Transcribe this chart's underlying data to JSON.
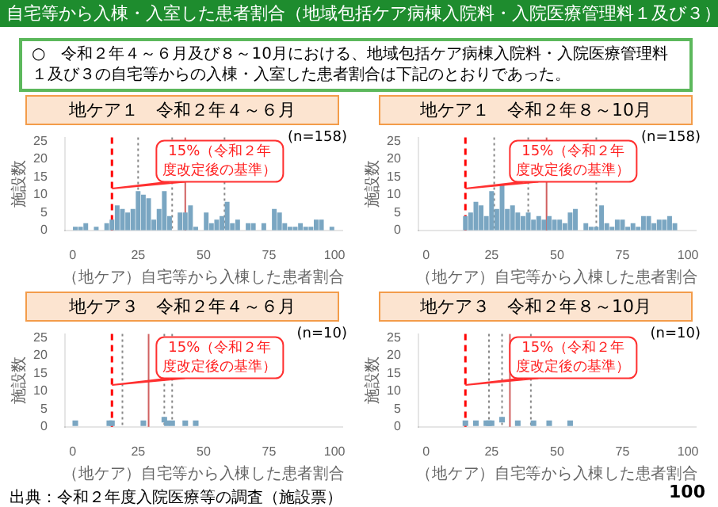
{
  "chart_data": [
    {
      "type": "histogram",
      "title": "地ケア１　令和２年４～６月",
      "xlabel": "（地ケア）自宅等から入棟した患者割合",
      "ylabel": "施設数",
      "color": "#7aa6c2",
      "bins": [
        0,
        2,
        4,
        6,
        8,
        10,
        12,
        14,
        16,
        18,
        20,
        22,
        24,
        26,
        28,
        30,
        32,
        34,
        36,
        38,
        40,
        42,
        44,
        46,
        48,
        50,
        52,
        54,
        56,
        58,
        60,
        62,
        64,
        66,
        68,
        70,
        72,
        74,
        76,
        78,
        80,
        82,
        84,
        86,
        88,
        90,
        92,
        94,
        96,
        98,
        100
      ],
      "values": [
        1,
        1,
        2,
        0,
        1,
        0,
        2,
        3,
        7,
        6,
        5,
        6,
        11,
        10,
        9,
        3,
        6,
        11,
        4,
        0,
        5,
        5,
        7,
        1,
        0,
        5,
        2,
        3,
        4,
        8,
        2,
        3,
        0,
        2,
        2,
        0,
        2,
        0,
        6,
        5,
        2,
        1,
        1,
        2,
        1,
        1,
        3,
        3,
        0,
        1
      ],
      "xlim": [
        -3,
        103
      ],
      "xticks": [
        0,
        25,
        50,
        75,
        100
      ],
      "ylim": [
        0,
        26
      ],
      "yticks": [
        0,
        5,
        10,
        15,
        20,
        25
      ],
      "ref_lines": [
        {
          "axis": "x",
          "value": 15,
          "color": "#ff0000",
          "line_style": "dashed"
        },
        {
          "axis": "x",
          "value": 25,
          "color": "#888888",
          "line_style": "dotted"
        },
        {
          "axis": "x",
          "value": 38,
          "color": "#888888",
          "line_style": "dotted"
        },
        {
          "axis": "x",
          "value": 43,
          "color": "#d06060",
          "line_style": "solid"
        },
        {
          "axis": "x",
          "value": 58,
          "color": "#888888",
          "line_style": "dotted"
        }
      ],
      "annotations": [
        "(n=158)",
        "15%（令和２年度改定後の基準）",
        "自宅等から入棟・入室した患者割合（地域包括ケア病棟入院料・入院医療管理料１及び３）",
        "○　令和２年４～６月及び８～10月における、地域包括ケア病棟入院料・入院医療管理料１及び３の自宅等からの入棟・入室した患者割合は下記のとおりであった。"
      ]
    },
    {
      "type": "histogram",
      "title": "地ケア１　令和２年８～10月",
      "xlabel": "（地ケア）自宅等から入棟した患者割合",
      "ylabel": "施設数",
      "color": "#7aa6c2",
      "bins": [
        14,
        16,
        18,
        20,
        22,
        24,
        26,
        28,
        30,
        32,
        34,
        36,
        38,
        40,
        42,
        44,
        46,
        48,
        50,
        52,
        54,
        56,
        58,
        60,
        62,
        64,
        66,
        68,
        70,
        72,
        74,
        76,
        78,
        80,
        82,
        84,
        86,
        88,
        90,
        92,
        94,
        96
      ],
      "values": [
        4,
        5,
        8,
        7,
        4,
        11,
        6,
        13,
        6,
        7,
        5,
        4,
        5,
        3,
        4,
        3,
        4,
        3,
        3,
        2,
        5,
        6,
        0,
        2,
        1,
        1,
        7,
        2,
        1,
        3,
        3,
        1,
        2,
        1,
        4,
        4,
        2,
        3,
        3,
        4,
        2
      ],
      "xlim": [
        -3,
        103
      ],
      "xticks": [
        0,
        25,
        50,
        75,
        100
      ],
      "ylim": [
        0,
        26
      ],
      "yticks": [
        0,
        5,
        10,
        15,
        20,
        25
      ],
      "ref_lines": [
        {
          "axis": "x",
          "value": 15,
          "color": "#ff0000",
          "line_style": "dashed"
        },
        {
          "axis": "x",
          "value": 26,
          "color": "#888888",
          "line_style": "dotted"
        },
        {
          "axis": "x",
          "value": 39,
          "color": "#888888",
          "line_style": "dotted"
        },
        {
          "axis": "x",
          "value": 46,
          "color": "#d06060",
          "line_style": "solid"
        },
        {
          "axis": "x",
          "value": 65,
          "color": "#888888",
          "line_style": "dotted"
        }
      ],
      "annotations": [
        "(n=158)",
        "15%（令和２年度改定後の基準）"
      ]
    },
    {
      "type": "scatter",
      "title": "地ケア３　令和２年４～６月",
      "xlabel": "（地ケア）自宅等から入棟した患者割合",
      "ylabel": "施設数",
      "color": "#7aa6c2",
      "marker": "square",
      "x": [
        1,
        14,
        15,
        27,
        35,
        36,
        38,
        43,
        47
      ],
      "values": [
        1,
        1,
        1,
        1,
        2,
        1,
        1,
        1,
        1
      ],
      "xlim": [
        -3,
        103
      ],
      "xticks": [
        0,
        25,
        50,
        75,
        100
      ],
      "ylim": [
        0,
        26
      ],
      "yticks": [
        0,
        5,
        10,
        15,
        20,
        25
      ],
      "ref_lines": [
        {
          "axis": "x",
          "value": 15,
          "color": "#ff0000",
          "line_style": "dashed"
        },
        {
          "axis": "x",
          "value": 19,
          "color": "#888888",
          "line_style": "dotted"
        },
        {
          "axis": "x",
          "value": 29,
          "color": "#d06060",
          "line_style": "solid"
        },
        {
          "axis": "x",
          "value": 35,
          "color": "#888888",
          "line_style": "dotted"
        },
        {
          "axis": "x",
          "value": 38,
          "color": "#888888",
          "line_style": "dotted"
        }
      ],
      "annotations": [
        "(n=10)",
        "15%（令和２年度改定後の基準）",
        "出典：令和２年度入院医療等の調査（施設票）"
      ]
    },
    {
      "type": "scatter",
      "title": "地ケア３　令和２年８～10月",
      "xlabel": "（地ケア）自宅等から入棟した患者割合",
      "ylabel": "施設数",
      "color": "#7aa6c2",
      "marker": "square",
      "x": [
        15,
        19,
        23,
        24,
        25,
        29,
        35,
        41,
        47,
        55
      ],
      "values": [
        1,
        1,
        1,
        1,
        1,
        2,
        1,
        1,
        1,
        1
      ],
      "xlim": [
        -3,
        103
      ],
      "xticks": [
        0,
        25,
        50,
        75,
        100
      ],
      "ylim": [
        0,
        26
      ],
      "yticks": [
        0,
        5,
        10,
        15,
        20,
        25
      ],
      "ref_lines": [
        {
          "axis": "x",
          "value": 15,
          "color": "#ff0000",
          "line_style": "dashed"
        },
        {
          "axis": "x",
          "value": 24,
          "color": "#888888",
          "line_style": "dotted"
        },
        {
          "axis": "x",
          "value": 29,
          "color": "#888888",
          "line_style": "dotted"
        },
        {
          "axis": "x",
          "value": 32,
          "color": "#d06060",
          "line_style": "solid"
        },
        {
          "axis": "x",
          "value": 40,
          "color": "#888888",
          "line_style": "dotted"
        }
      ],
      "annotations": [
        "(n=10)",
        "15%（令和２年度改定後の基準）",
        "100"
      ]
    }
  ]
}
